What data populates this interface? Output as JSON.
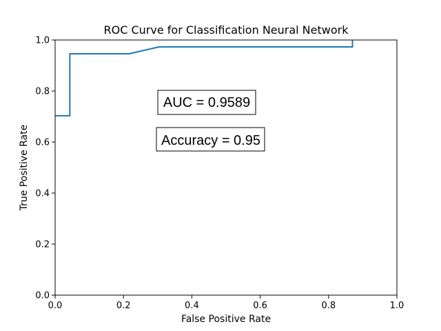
{
  "chart_data": {
    "type": "line",
    "title": "ROC Curve for Classification Neural Network",
    "xlabel": "False Positive Rate",
    "ylabel": "True Positive Rate",
    "xlim": [
      0.0,
      1.0
    ],
    "ylim": [
      0.0,
      1.0
    ],
    "x_ticks": [
      "0.0",
      "0.2",
      "0.4",
      "0.6",
      "0.8",
      "1.0"
    ],
    "y_ticks": [
      "0.0",
      "0.2",
      "0.4",
      "0.6",
      "0.8",
      "1.0"
    ],
    "grid": false,
    "series": [
      {
        "color": "#1f77b4",
        "x": [
          0.0,
          0.043,
          0.043,
          0.217,
          0.304,
          0.87,
          0.87
        ],
        "y": [
          0.703,
          0.703,
          0.946,
          0.946,
          0.973,
          0.973,
          1.0
        ]
      }
    ],
    "annotations": [
      {
        "text": "AUC = 0.9589"
      },
      {
        "text": "Accuracy = 0.95"
      }
    ]
  }
}
